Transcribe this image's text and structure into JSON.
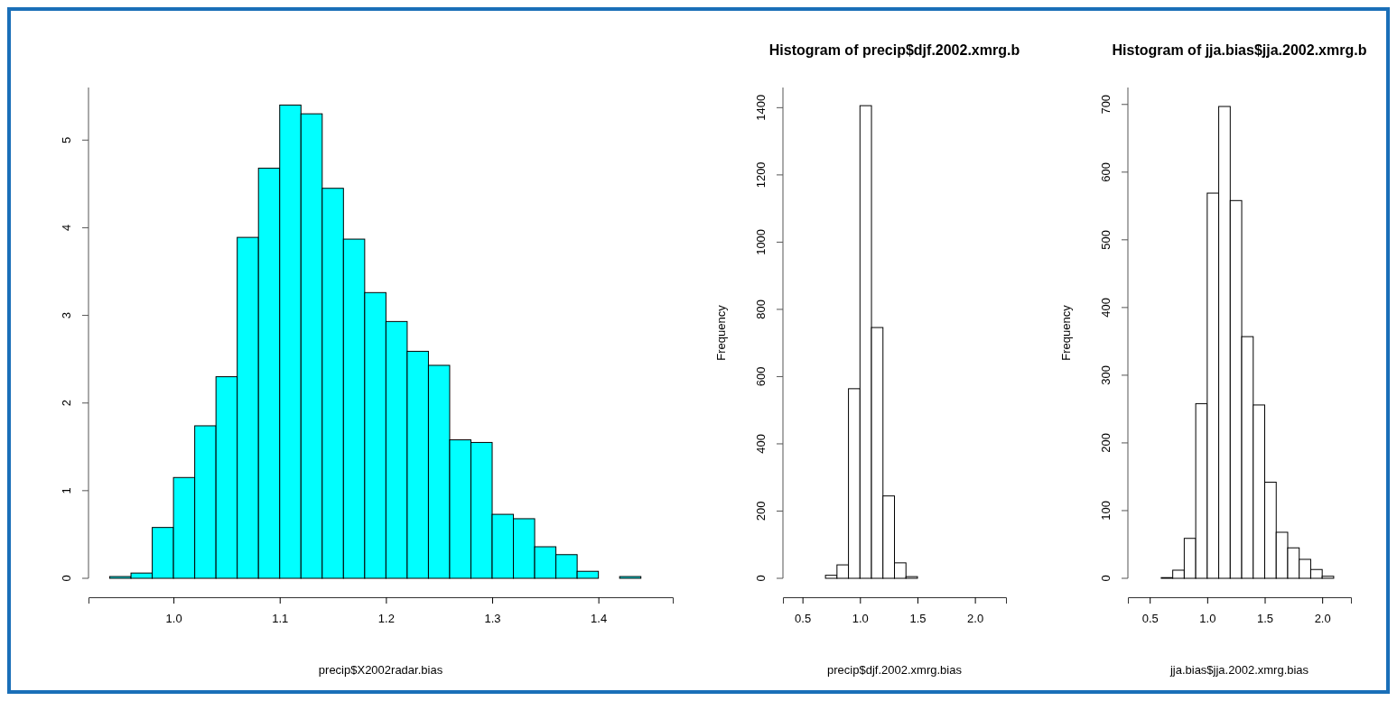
{
  "chart_data": [
    {
      "type": "histogram",
      "xlabel": "precip$X2002radar.bias",
      "color": "#00ffff",
      "bins": [
        0.94,
        0.96,
        0.98,
        1.0,
        1.02,
        1.04,
        1.06,
        1.08,
        1.1,
        1.12,
        1.14,
        1.16,
        1.18,
        1.2,
        1.22,
        1.24,
        1.26,
        1.28,
        1.3,
        1.32,
        1.34,
        1.36,
        1.38,
        1.4,
        1.42,
        1.44
      ],
      "values": [
        0.02,
        0.06,
        0.58,
        1.15,
        1.74,
        2.3,
        3.89,
        4.68,
        5.4,
        5.3,
        4.45,
        3.87,
        3.26,
        2.93,
        2.59,
        2.43,
        1.58,
        1.55,
        0.73,
        0.68,
        0.36,
        0.27,
        0.08,
        0,
        0.02
      ],
      "xlim": [
        0.92,
        1.47
      ],
      "ylim": [
        0,
        5.6
      ],
      "xticks": [
        {
          "value": 1.0,
          "label": "1.0"
        },
        {
          "value": 1.1,
          "label": "1.1"
        },
        {
          "value": 1.2,
          "label": "1.2"
        },
        {
          "value": 1.3,
          "label": "1.3"
        },
        {
          "value": 1.4,
          "label": "1.4"
        }
      ],
      "yticks": [
        0,
        1,
        2,
        3,
        4,
        5
      ],
      "grid": false
    },
    {
      "type": "histogram",
      "title": "Histogram of precip$djf.2002.xmrg.b",
      "xlabel": "precip$djf.2002.xmrg.bias",
      "ylabel": "Frequency",
      "color": "#ffffff",
      "bins": [
        0.4,
        0.5,
        0.6,
        0.7,
        0.8,
        0.9,
        1.0,
        1.1,
        1.2,
        1.3,
        1.4,
        1.5,
        1.6,
        1.7,
        1.8,
        1.9,
        2.0,
        2.1,
        2.2
      ],
      "values": [
        0,
        0,
        0,
        9,
        40,
        564,
        1406,
        746,
        245,
        46,
        5,
        0,
        0,
        0,
        0,
        0,
        0,
        0
      ],
      "xlim": [
        0.33,
        2.27
      ],
      "ylim": [
        0,
        1460
      ],
      "xticks": [
        {
          "value": 0.5,
          "label": "0.5"
        },
        {
          "value": 1.0,
          "label": "1.0"
        },
        {
          "value": 1.5,
          "label": "1.5"
        },
        {
          "value": 2.0,
          "label": "2.0"
        }
      ],
      "yticks": [
        0,
        200,
        400,
        600,
        800,
        1000,
        1200,
        1400
      ],
      "grid": false
    },
    {
      "type": "histogram",
      "title": "Histogram of jja.bias$jja.2002.xmrg.b",
      "xlabel": "jja.bias$jja.2002.xmrg.bias",
      "ylabel": "Frequency",
      "color": "#ffffff",
      "bins": [
        0.4,
        0.5,
        0.6,
        0.7,
        0.8,
        0.9,
        1.0,
        1.1,
        1.2,
        1.3,
        1.4,
        1.5,
        1.6,
        1.7,
        1.8,
        1.9,
        2.0,
        2.1,
        2.2
      ],
      "values": [
        0,
        0,
        1,
        12,
        59,
        258,
        569,
        697,
        558,
        357,
        256,
        142,
        68,
        45,
        28,
        13,
        3,
        0
      ],
      "xlim": [
        0.31,
        2.25
      ],
      "ylim": [
        0,
        725
      ],
      "xticks": [
        0.5,
        {
          "value": 1.0,
          "label": "1.0"
        },
        1.5,
        {
          "value": 2.0,
          "label": "2.0"
        }
      ],
      "yticks": [
        0,
        100,
        200,
        300,
        400,
        500,
        600,
        700
      ],
      "grid": false
    }
  ]
}
